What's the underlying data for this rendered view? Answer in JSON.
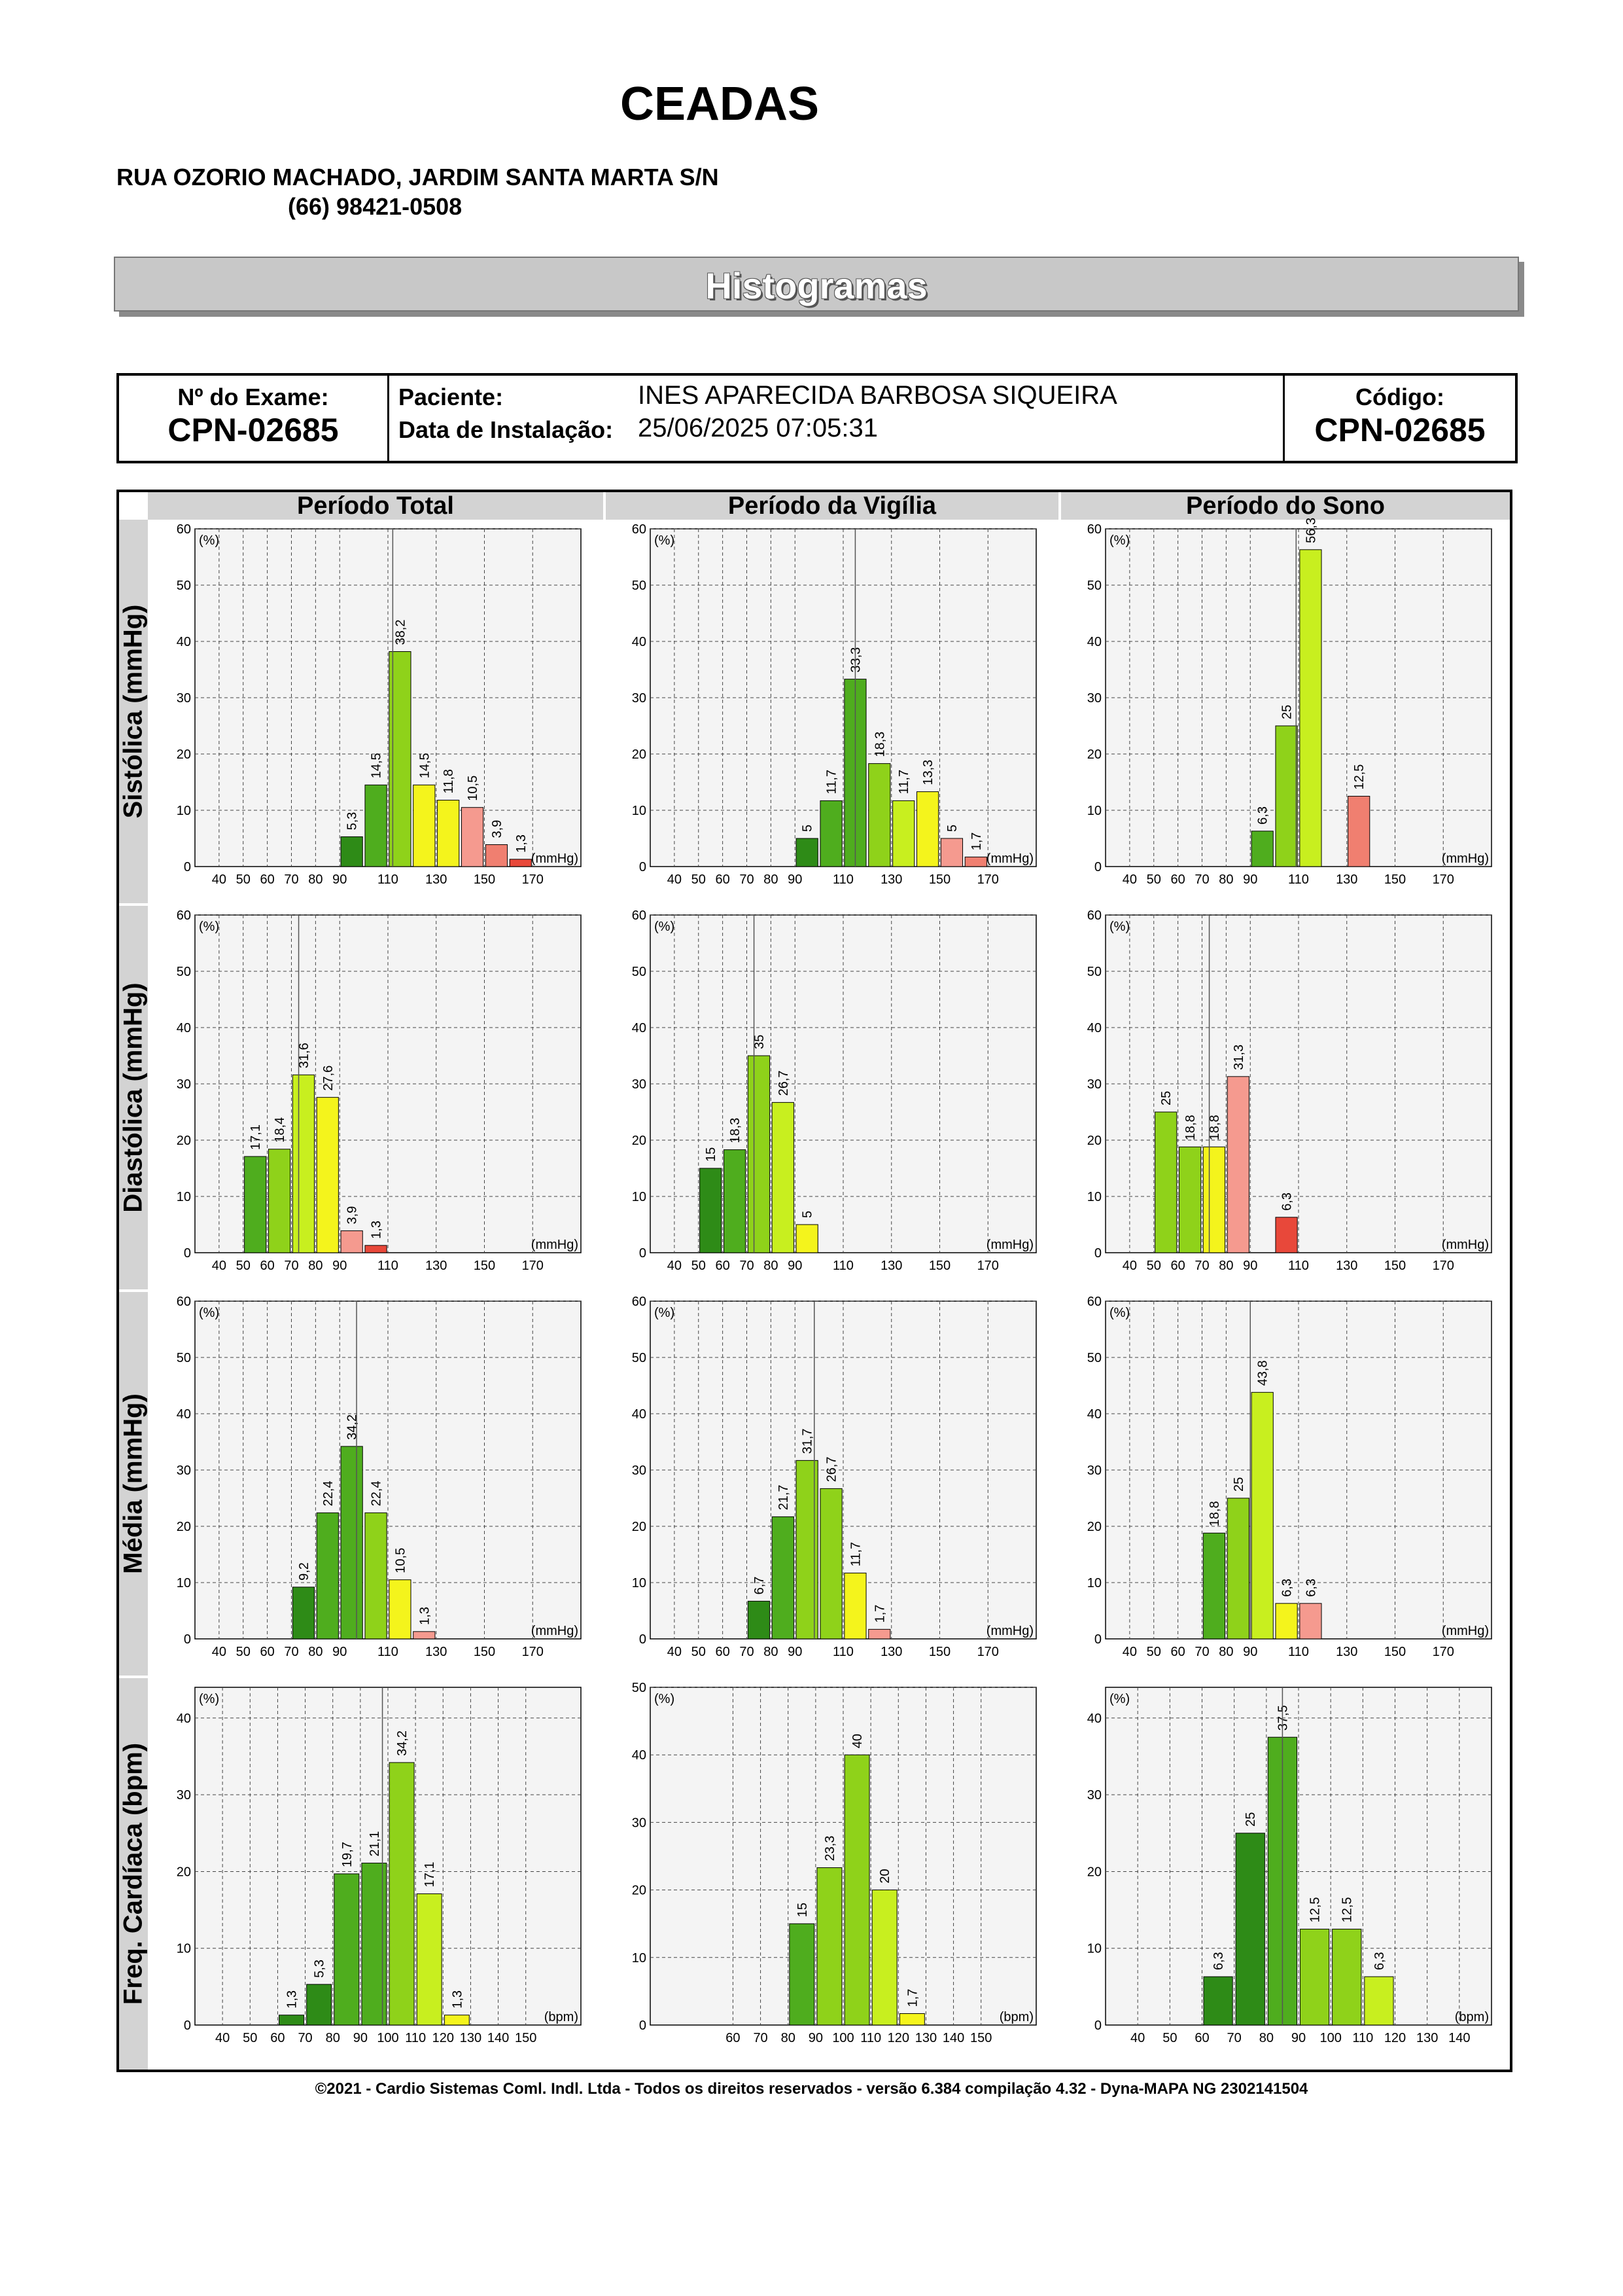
{
  "header": {
    "company": "CEADAS",
    "address": "RUA OZORIO MACHADO, JARDIM SANTA MARTA S/N",
    "phone": "(66) 98421-0508",
    "banner": "Histogramas"
  },
  "exam": {
    "exam_label": "Nº do Exame:",
    "exam_value": "CPN-02685",
    "patient_label": "Paciente:",
    "patient_value": "INES APARECIDA BARBOSA SIQUEIRA",
    "install_label": "Data de Instalação:",
    "install_value": "25/06/2025 07:05:31",
    "code_label": "Código:",
    "code_value": "CPN-02685"
  },
  "grid": {
    "columns": [
      "Período Total",
      "Período da Vigília",
      "Período do Sono"
    ],
    "rows": [
      "Sistólica (mmHg)",
      "Diastólica (mmHg)",
      "Média (mmHg)",
      "Freq. Cardíaca (bpm)"
    ]
  },
  "colors": {
    "dark_green": "#2e8b17",
    "green": "#4fad1e",
    "light_green": "#8fd21a",
    "yellow_green": "#c8ef1f",
    "yellow": "#f4f41c",
    "salmon": "#f59a8f",
    "red_salmon": "#f07f70",
    "red": "#e8483a",
    "plot_bg": "#f4f4f4"
  },
  "chart_data": [
    {
      "type": "bar",
      "row": "Sistólica (mmHg)",
      "period": "Período Total",
      "unit": "(mmHg)",
      "ylabel": "(%)",
      "ylim": [
        0,
        60
      ],
      "yticks": [
        0,
        10,
        20,
        30,
        40,
        50,
        60
      ],
      "xlim": [
        30,
        190
      ],
      "xticks": [
        40,
        50,
        60,
        70,
        80,
        90,
        110,
        130,
        150,
        170
      ],
      "mean_line": 112,
      "bars": [
        {
          "x": 95,
          "value": 5.3,
          "label": "5,3",
          "color": "dark_green"
        },
        {
          "x": 105,
          "value": 14.5,
          "label": "14,5",
          "color": "green"
        },
        {
          "x": 115,
          "value": 38.2,
          "label": "38,2",
          "color": "light_green"
        },
        {
          "x": 125,
          "value": 14.5,
          "label": "14,5",
          "color": "yellow"
        },
        {
          "x": 135,
          "value": 11.8,
          "label": "11,8",
          "color": "yellow"
        },
        {
          "x": 145,
          "value": 10.5,
          "label": "10,5",
          "color": "salmon"
        },
        {
          "x": 155,
          "value": 3.9,
          "label": "3,9",
          "color": "red_salmon"
        },
        {
          "x": 165,
          "value": 1.3,
          "label": "1,3",
          "color": "red"
        }
      ]
    },
    {
      "type": "bar",
      "row": "Sistólica (mmHg)",
      "period": "Período da Vigília",
      "unit": "(mmHg)",
      "ylabel": "(%)",
      "ylim": [
        0,
        60
      ],
      "yticks": [
        0,
        10,
        20,
        30,
        40,
        50,
        60
      ],
      "xlim": [
        30,
        190
      ],
      "xticks": [
        40,
        50,
        60,
        70,
        80,
        90,
        110,
        130,
        150,
        170
      ],
      "mean_line": 115,
      "bars": [
        {
          "x": 95,
          "value": 5,
          "label": "5",
          "color": "dark_green"
        },
        {
          "x": 105,
          "value": 11.7,
          "label": "11,7",
          "color": "green"
        },
        {
          "x": 115,
          "value": 33.3,
          "label": "33,3",
          "color": "green"
        },
        {
          "x": 125,
          "value": 18.3,
          "label": "18,3",
          "color": "light_green"
        },
        {
          "x": 135,
          "value": 11.7,
          "label": "11,7",
          "color": "yellow_green"
        },
        {
          "x": 145,
          "value": 13.3,
          "label": "13,3",
          "color": "yellow"
        },
        {
          "x": 155,
          "value": 5,
          "label": "5",
          "color": "salmon"
        },
        {
          "x": 165,
          "value": 1.7,
          "label": "1,7",
          "color": "red_salmon"
        }
      ]
    },
    {
      "type": "bar",
      "row": "Sistólica (mmHg)",
      "period": "Período do Sono",
      "unit": "(mmHg)",
      "ylabel": "(%)",
      "ylim": [
        0,
        60
      ],
      "yticks": [
        0,
        10,
        20,
        30,
        40,
        50,
        60
      ],
      "xlim": [
        30,
        190
      ],
      "xticks": [
        40,
        50,
        60,
        70,
        80,
        90,
        110,
        130,
        150,
        170
      ],
      "mean_line": 109,
      "bars": [
        {
          "x": 95,
          "value": 6.3,
          "label": "6,3",
          "color": "green"
        },
        {
          "x": 105,
          "value": 25,
          "label": "25",
          "color": "light_green"
        },
        {
          "x": 115,
          "value": 56.3,
          "label": "56,3",
          "color": "yellow_green"
        },
        {
          "x": 135,
          "value": 12.5,
          "label": "12,5",
          "color": "red_salmon"
        }
      ]
    },
    {
      "type": "bar",
      "row": "Diastólica (mmHg)",
      "period": "Período Total",
      "unit": "(mmHg)",
      "ylabel": "(%)",
      "ylim": [
        0,
        60
      ],
      "yticks": [
        0,
        10,
        20,
        30,
        40,
        50,
        60
      ],
      "xlim": [
        30,
        190
      ],
      "xticks": [
        40,
        50,
        60,
        70,
        80,
        90,
        110,
        130,
        150,
        170
      ],
      "mean_line": 73,
      "bars": [
        {
          "x": 55,
          "value": 17.1,
          "label": "17,1",
          "color": "green"
        },
        {
          "x": 65,
          "value": 18.4,
          "label": "18,4",
          "color": "light_green"
        },
        {
          "x": 75,
          "value": 31.6,
          "label": "31,6",
          "color": "yellow_green"
        },
        {
          "x": 85,
          "value": 27.6,
          "label": "27,6",
          "color": "yellow"
        },
        {
          "x": 95,
          "value": 3.9,
          "label": "3,9",
          "color": "salmon"
        },
        {
          "x": 105,
          "value": 1.3,
          "label": "1,3",
          "color": "red"
        }
      ]
    },
    {
      "type": "bar",
      "row": "Diastólica (mmHg)",
      "period": "Período da Vigília",
      "unit": "(mmHg)",
      "ylabel": "(%)",
      "ylim": [
        0,
        60
      ],
      "yticks": [
        0,
        10,
        20,
        30,
        40,
        50,
        60
      ],
      "xlim": [
        30,
        190
      ],
      "xticks": [
        40,
        50,
        60,
        70,
        80,
        90,
        110,
        130,
        150,
        170
      ],
      "mean_line": 73,
      "bars": [
        {
          "x": 55,
          "value": 15,
          "label": "15",
          "color": "dark_green"
        },
        {
          "x": 65,
          "value": 18.3,
          "label": "18,3",
          "color": "green"
        },
        {
          "x": 75,
          "value": 35,
          "label": "35",
          "color": "light_green"
        },
        {
          "x": 85,
          "value": 26.7,
          "label": "26,7",
          "color": "yellow_green"
        },
        {
          "x": 95,
          "value": 5,
          "label": "5",
          "color": "yellow"
        }
      ]
    },
    {
      "type": "bar",
      "row": "Diastólica (mmHg)",
      "period": "Período do Sono",
      "unit": "(mmHg)",
      "ylabel": "(%)",
      "ylim": [
        0,
        60
      ],
      "yticks": [
        0,
        10,
        20,
        30,
        40,
        50,
        60
      ],
      "xlim": [
        30,
        190
      ],
      "xticks": [
        40,
        50,
        60,
        70,
        80,
        90,
        110,
        130,
        150,
        170
      ],
      "mean_line": 73,
      "bars": [
        {
          "x": 55,
          "value": 25,
          "label": "25",
          "color": "light_green"
        },
        {
          "x": 65,
          "value": 18.8,
          "label": "18,8",
          "color": "light_green"
        },
        {
          "x": 75,
          "value": 18.8,
          "label": "18,8",
          "color": "yellow"
        },
        {
          "x": 85,
          "value": 31.3,
          "label": "31,3",
          "color": "salmon"
        },
        {
          "x": 105,
          "value": 6.3,
          "label": "6,3",
          "color": "red"
        }
      ]
    },
    {
      "type": "bar",
      "row": "Média (mmHg)",
      "period": "Período Total",
      "unit": "(mmHg)",
      "ylabel": "(%)",
      "ylim": [
        0,
        60
      ],
      "yticks": [
        0,
        10,
        20,
        30,
        40,
        50,
        60
      ],
      "xlim": [
        30,
        190
      ],
      "xticks": [
        40,
        50,
        60,
        70,
        80,
        90,
        110,
        130,
        150,
        170
      ],
      "mean_line": 97,
      "bars": [
        {
          "x": 75,
          "value": 9.2,
          "label": "9,2",
          "color": "dark_green"
        },
        {
          "x": 85,
          "value": 22.4,
          "label": "22,4",
          "color": "green"
        },
        {
          "x": 95,
          "value": 34.2,
          "label": "34,2",
          "color": "green"
        },
        {
          "x": 105,
          "value": 22.4,
          "label": "22,4",
          "color": "light_green"
        },
        {
          "x": 115,
          "value": 10.5,
          "label": "10,5",
          "color": "yellow"
        },
        {
          "x": 125,
          "value": 1.3,
          "label": "1,3",
          "color": "salmon"
        }
      ]
    },
    {
      "type": "bar",
      "row": "Média (mmHg)",
      "period": "Período da Vigília",
      "unit": "(mmHg)",
      "ylabel": "(%)",
      "ylim": [
        0,
        60
      ],
      "yticks": [
        0,
        10,
        20,
        30,
        40,
        50,
        60
      ],
      "xlim": [
        30,
        190
      ],
      "xticks": [
        40,
        50,
        60,
        70,
        80,
        90,
        110,
        130,
        150,
        170
      ],
      "mean_line": 98,
      "bars": [
        {
          "x": 75,
          "value": 6.7,
          "label": "6,7",
          "color": "dark_green"
        },
        {
          "x": 85,
          "value": 21.7,
          "label": "21,7",
          "color": "green"
        },
        {
          "x": 95,
          "value": 31.7,
          "label": "31,7",
          "color": "light_green"
        },
        {
          "x": 105,
          "value": 26.7,
          "label": "26,7",
          "color": "light_green"
        },
        {
          "x": 115,
          "value": 11.7,
          "label": "11,7",
          "color": "yellow"
        },
        {
          "x": 125,
          "value": 1.7,
          "label": "1,7",
          "color": "salmon"
        }
      ]
    },
    {
      "type": "bar",
      "row": "Média (mmHg)",
      "period": "Período do Sono",
      "unit": "(mmHg)",
      "ylabel": "(%)",
      "ylim": [
        0,
        60
      ],
      "yticks": [
        0,
        10,
        20,
        30,
        40,
        50,
        60
      ],
      "xlim": [
        30,
        190
      ],
      "xticks": [
        40,
        50,
        60,
        70,
        80,
        90,
        110,
        130,
        150,
        170
      ],
      "mean_line": 90,
      "bars": [
        {
          "x": 75,
          "value": 18.8,
          "label": "18,8",
          "color": "green"
        },
        {
          "x": 85,
          "value": 25,
          "label": "25",
          "color": "light_green"
        },
        {
          "x": 95,
          "value": 43.8,
          "label": "43,8",
          "color": "yellow_green"
        },
        {
          "x": 105,
          "value": 6.3,
          "label": "6,3",
          "color": "yellow"
        },
        {
          "x": 115,
          "value": 6.3,
          "label": "6,3",
          "color": "salmon"
        }
      ]
    },
    {
      "type": "bar",
      "row": "Freq. Cardíaca (bpm)",
      "period": "Período Total",
      "unit": "(bpm)",
      "ylabel": "(%)",
      "ylim": [
        0,
        44
      ],
      "yticks": [
        0,
        10,
        20,
        30,
        40
      ],
      "xlim": [
        30,
        170
      ],
      "xticks": [
        40,
        50,
        60,
        70,
        80,
        90,
        100,
        110,
        120,
        130,
        140,
        150
      ],
      "mean_line": 98,
      "bars": [
        {
          "x": 65,
          "value": 1.3,
          "label": "1,3",
          "color": "dark_green"
        },
        {
          "x": 75,
          "value": 5.3,
          "label": "5,3",
          "color": "dark_green"
        },
        {
          "x": 85,
          "value": 19.7,
          "label": "19,7",
          "color": "green"
        },
        {
          "x": 95,
          "value": 21.1,
          "label": "21,1",
          "color": "green"
        },
        {
          "x": 105,
          "value": 34.2,
          "label": "34,2",
          "color": "light_green"
        },
        {
          "x": 115,
          "value": 17.1,
          "label": "17,1",
          "color": "yellow_green"
        },
        {
          "x": 125,
          "value": 1.3,
          "label": "1,3",
          "color": "yellow"
        }
      ]
    },
    {
      "type": "bar",
      "row": "Freq. Cardíaca (bpm)",
      "period": "Período da Vigília",
      "unit": "(bpm)",
      "ylabel": "(%)",
      "ylim": [
        0,
        50
      ],
      "yticks": [
        0,
        10,
        20,
        30,
        40,
        50
      ],
      "xlim": [
        30,
        170
      ],
      "xticks": [
        60,
        70,
        80,
        90,
        100,
        110,
        120,
        130,
        140,
        150
      ],
      "mean_line": null,
      "bars": [
        {
          "x": 85,
          "value": 15,
          "label": "15",
          "color": "green"
        },
        {
          "x": 95,
          "value": 23.3,
          "label": "23,3",
          "color": "light_green"
        },
        {
          "x": 105,
          "value": 40,
          "label": "40",
          "color": "light_green"
        },
        {
          "x": 115,
          "value": 20,
          "label": "20",
          "color": "yellow_green"
        },
        {
          "x": 125,
          "value": 1.7,
          "label": "1,7",
          "color": "yellow"
        }
      ]
    },
    {
      "type": "bar",
      "row": "Freq. Cardíaca (bpm)",
      "period": "Período do Sono",
      "unit": "(bpm)",
      "ylabel": "(%)",
      "ylim": [
        0,
        44
      ],
      "yticks": [
        0,
        10,
        20,
        30,
        40
      ],
      "xlim": [
        30,
        150
      ],
      "xticks": [
        40,
        50,
        60,
        70,
        80,
        90,
        100,
        110,
        120,
        130,
        140
      ],
      "mean_line": 85,
      "bars": [
        {
          "x": 65,
          "value": 6.3,
          "label": "6,3",
          "color": "dark_green"
        },
        {
          "x": 75,
          "value": 25,
          "label": "25",
          "color": "dark_green"
        },
        {
          "x": 85,
          "value": 37.5,
          "label": "37,5",
          "color": "green"
        },
        {
          "x": 95,
          "value": 12.5,
          "label": "12,5",
          "color": "light_green"
        },
        {
          "x": 105,
          "value": 12.5,
          "label": "12,5",
          "color": "light_green"
        },
        {
          "x": 115,
          "value": 6.3,
          "label": "6,3",
          "color": "yellow_green"
        }
      ]
    }
  ],
  "footer": "©2021 - Cardio Sistemas Coml. Indl. Ltda - Todos os direitos reservados - versão 6.384 compilação 4.32 - Dyna-MAPA NG 2302141504"
}
